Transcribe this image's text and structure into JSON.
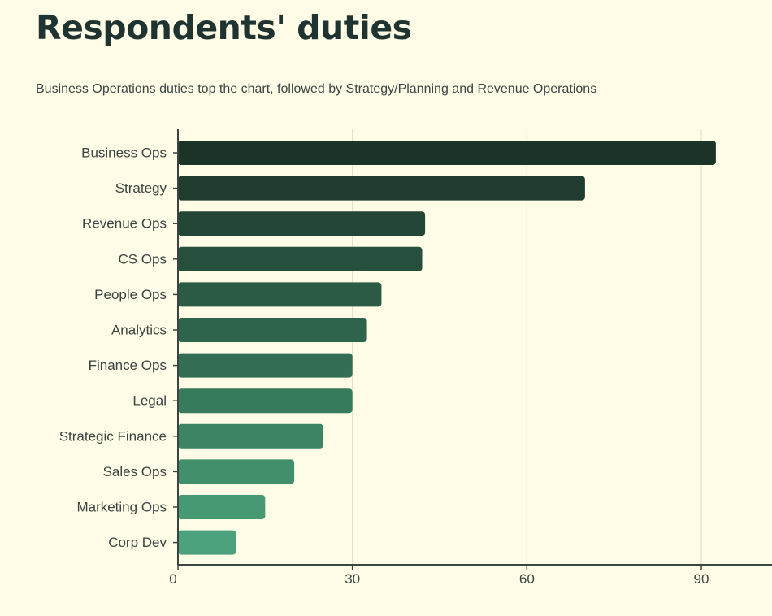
{
  "title": "Respondents' duties",
  "subtitle": "Business Operations duties top the chart, followed by Strategy/Planning and Revenue Operations",
  "chart_data": {
    "type": "bar",
    "orientation": "horizontal",
    "categories": [
      "Business Ops",
      "Strategy",
      "Revenue Ops",
      "CS Ops",
      "People Ops",
      "Analytics",
      "Finance Ops",
      "Legal",
      "Strategic Finance",
      "Sales Ops",
      "Marketing Ops",
      "Corp Dev"
    ],
    "values": [
      92.5,
      70,
      42.5,
      42,
      35,
      32.5,
      30,
      30,
      25,
      20,
      15,
      10
    ],
    "x_ticks": [
      0,
      30,
      60,
      90
    ],
    "xlim": [
      0,
      102
    ],
    "grid": true,
    "colors": [
      "#1c3328",
      "#1f3c2f",
      "#234636",
      "#26503d",
      "#2b5a45",
      "#2f644c",
      "#336e54",
      "#377a5c",
      "#3c8463",
      "#418f6b",
      "#469973",
      "#4ca27c"
    ]
  }
}
